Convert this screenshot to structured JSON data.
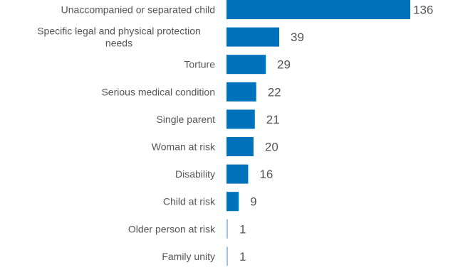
{
  "chart_data": {
    "type": "bar",
    "orientation": "horizontal",
    "categories": [
      "Unaccompanied or separated child",
      "Specific legal and physical protection needs",
      "Torture",
      "Serious medical condition",
      "Single parent",
      "Woman at risk",
      "Disability",
      "Child at risk",
      "Older person at risk",
      "Family unity"
    ],
    "category_lines": [
      [
        "Unaccompanied or separated child"
      ],
      [
        "Specific legal and physical protection",
        "needs"
      ],
      [
        "Torture"
      ],
      [
        "Serious medical condition"
      ],
      [
        "Single parent"
      ],
      [
        "Woman at risk"
      ],
      [
        "Disability"
      ],
      [
        "Child at risk"
      ],
      [
        "Older person at risk"
      ],
      [
        "Family unity"
      ]
    ],
    "values": [
      136,
      39,
      29,
      22,
      21,
      20,
      16,
      9,
      1,
      1
    ],
    "xlim": [
      0,
      136
    ],
    "grid": false,
    "bar_color": "#0072bc",
    "axis_color": "#9ec3e0",
    "title": "",
    "xlabel": "",
    "ylabel": ""
  }
}
